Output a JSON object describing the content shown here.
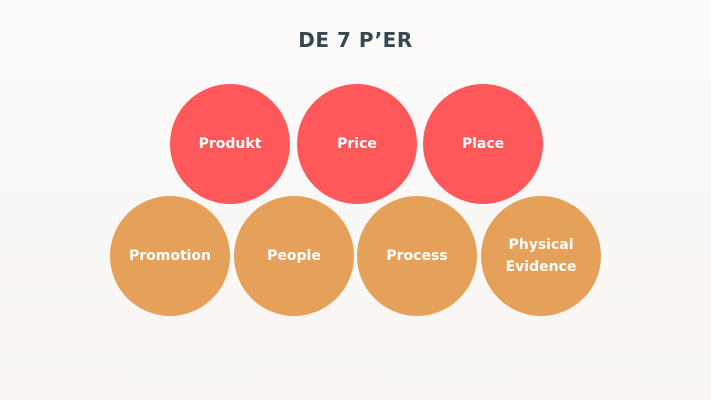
{
  "title": "DE 7 P’ER",
  "colors": {
    "top_row": "#ff585a",
    "bottom_row": "#e5a15a",
    "title": "#37474f"
  },
  "top_row": [
    "Produkt",
    "Price",
    "Place"
  ],
  "bottom_row": [
    "Promotion",
    "People",
    "Process",
    "Physical Evidence"
  ]
}
